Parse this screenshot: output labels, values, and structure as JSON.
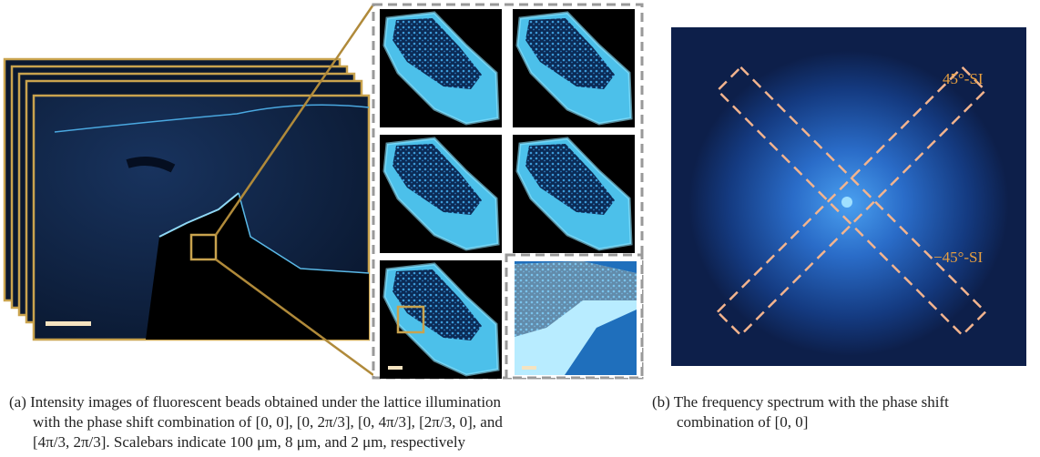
{
  "figure": {
    "annotations": [
      "45°-SI",
      "−45°-SI"
    ],
    "captions": {
      "a": [
        "(a) Intensity images of fluorescent beads obtained under the lattice illumination",
        "with the phase shift combination of [0, 0], [0, 2π/3], [0, 4π/3], [2π/3, 0], and",
        "[4π/3, 2π/3]. Scalebars indicate 100 μm, 8 μm, and 2 μm, respectively"
      ],
      "b": [
        "(b) The frequency spectrum with the phase shift",
        "combination of [0, 0]"
      ]
    }
  }
}
